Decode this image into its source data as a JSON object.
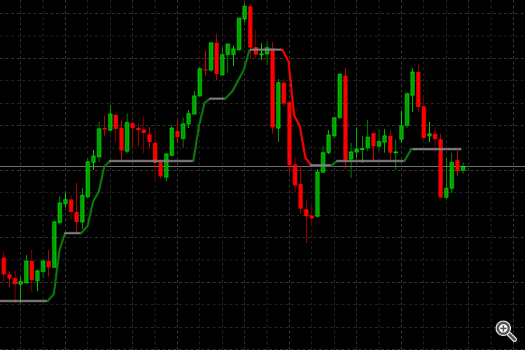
{
  "chart_data": {
    "type": "candlestick",
    "title": "",
    "xlabel": "",
    "ylabel": "",
    "ylim": [
      0,
      500
    ],
    "grid": true,
    "grid_style": "dashed",
    "background": "#000000",
    "colors": {
      "bull_body": "#00a000",
      "bull_border": "#00e000",
      "bear_body": "#ff0000",
      "bear_wick": "#e00000",
      "grid": "#3c3c3c",
      "trail_up": "#0a7a0a",
      "trail_down": "#ff0000",
      "trail_flat": "#808080",
      "level_line": "#b0b0b0"
    },
    "candles_ohlc": [
      [
        132,
        141,
        97,
        108
      ],
      [
        108,
        113,
        90,
        102
      ],
      [
        103,
        113,
        67,
        94
      ],
      [
        94,
        105,
        67,
        98
      ],
      [
        96,
        136,
        95,
        127
      ],
      [
        127,
        143,
        83,
        100
      ],
      [
        99,
        115,
        84,
        113
      ],
      [
        112,
        130,
        103,
        127
      ],
      [
        127,
        143,
        105,
        118
      ],
      [
        118,
        185,
        118,
        183
      ],
      [
        182,
        220,
        179,
        210
      ],
      [
        209,
        225,
        204,
        215
      ],
      [
        215,
        221,
        186,
        197
      ],
      [
        197,
        239,
        167,
        183
      ],
      [
        183,
        232,
        173,
        221
      ],
      [
        219,
        274,
        217,
        269
      ],
      [
        268,
        286,
        257,
        277
      ],
      [
        276,
        326,
        268,
        316
      ],
      [
        317,
        334,
        305,
        315
      ],
      [
        314,
        350,
        313,
        337
      ],
      [
        336,
        338,
        297,
        316
      ],
      [
        317,
        328,
        270,
        285
      ],
      [
        284,
        338,
        281,
        325
      ],
      [
        324,
        326,
        288,
        317
      ],
      [
        317,
        324,
        290,
        314
      ],
      [
        315,
        334,
        281,
        310
      ],
      [
        308,
        319,
        288,
        297
      ],
      [
        296,
        311,
        244,
        267
      ],
      [
        268,
        272,
        245,
        248
      ],
      [
        247,
        281,
        242,
        280
      ],
      [
        278,
        322,
        277,
        317
      ],
      [
        313,
        328,
        296,
        304
      ],
      [
        302,
        332,
        289,
        323
      ],
      [
        323,
        343,
        317,
        338
      ],
      [
        337,
        370,
        337,
        363
      ],
      [
        363,
        405,
        363,
        402
      ],
      [
        401,
        428,
        392,
        400
      ],
      [
        400,
        439,
        397,
        439
      ],
      [
        439,
        452,
        385,
        394
      ],
      [
        393,
        432,
        393,
        422
      ],
      [
        422,
        437,
        396,
        437
      ],
      [
        422,
        435,
        406,
        430
      ],
      [
        429,
        474,
        427,
        474
      ],
      [
        473,
        495,
        468,
        491
      ],
      [
        491,
        495,
        416,
        432
      ],
      [
        433,
        457,
        417,
        422
      ],
      [
        422,
        438,
        414,
        423
      ],
      [
        423,
        441,
        407,
        432
      ],
      [
        431,
        440,
        309,
        318
      ],
      [
        317,
        387,
        297,
        382
      ],
      [
        382,
        387,
        347,
        352
      ],
      [
        354,
        354,
        253,
        264
      ],
      [
        265,
        276,
        225,
        235
      ],
      [
        237,
        263,
        195,
        202
      ],
      [
        201,
        214,
        153,
        191
      ],
      [
        192,
        207,
        177,
        188
      ],
      [
        191,
        258,
        190,
        254
      ],
      [
        254,
        292,
        253,
        282
      ],
      [
        282,
        314,
        280,
        307
      ],
      [
        306,
        333,
        303,
        332
      ],
      [
        332,
        394,
        330,
        394
      ],
      [
        392,
        403,
        259,
        272
      ],
      [
        273,
        296,
        246,
        283
      ],
      [
        283,
        318,
        274,
        287
      ],
      [
        287,
        306,
        267,
        288
      ],
      [
        289,
        329,
        284,
        304
      ],
      [
        310,
        310,
        268,
        291
      ],
      [
        291,
        314,
        284,
        298
      ],
      [
        297,
        316,
        282,
        306
      ],
      [
        306,
        314,
        271,
        282
      ],
      [
        282,
        301,
        257,
        283
      ],
      [
        301,
        342,
        297,
        320
      ],
      [
        321,
        368,
        317,
        366
      ],
      [
        364,
        403,
        340,
        397
      ],
      [
        397,
        408,
        340,
        347
      ],
      [
        348,
        363,
        300,
        303
      ],
      [
        306,
        326,
        297,
        309
      ],
      [
        309,
        318,
        283,
        301
      ],
      [
        301,
        309,
        217,
        218
      ],
      [
        218,
        275,
        215,
        231
      ],
      [
        231,
        282,
        224,
        268
      ],
      [
        271,
        284,
        249,
        256
      ],
      [
        257,
        268,
        252,
        262
      ]
    ],
    "trail_line": [
      [
        -0.7,
        70,
        "flat"
      ],
      [
        7.9,
        70,
        "flat"
      ],
      [
        9,
        80,
        "up"
      ],
      [
        10,
        143,
        "up"
      ],
      [
        11,
        167,
        "up"
      ],
      [
        13.9,
        167,
        "flat"
      ],
      [
        15,
        177,
        "up"
      ],
      [
        16,
        212,
        "up"
      ],
      [
        17,
        226,
        "up"
      ],
      [
        18,
        262,
        "up"
      ],
      [
        19,
        270,
        "up"
      ],
      [
        33.9,
        270,
        "flat"
      ],
      [
        34.9,
        320,
        "up"
      ],
      [
        35.9,
        353,
        "up"
      ],
      [
        36.9,
        359,
        "up"
      ],
      [
        39.6,
        359,
        "flat"
      ],
      [
        40.9,
        370,
        "up"
      ],
      [
        41.9,
        385,
        "up"
      ],
      [
        42.9,
        400,
        "up"
      ],
      [
        43.9,
        428,
        "up"
      ],
      [
        44.2,
        429,
        "up"
      ],
      [
        49.8,
        429,
        "flat"
      ],
      [
        50.9,
        412,
        "down"
      ],
      [
        51.9,
        335,
        "down"
      ],
      [
        52.9,
        320,
        "down"
      ],
      [
        53.9,
        275,
        "down"
      ],
      [
        54.9,
        264,
        "down"
      ],
      [
        58.6,
        264,
        "flat"
      ],
      [
        59.2,
        268,
        "up"
      ],
      [
        59.6,
        270,
        "up"
      ],
      [
        71.6,
        270,
        "flat"
      ],
      [
        72.8,
        287,
        "up"
      ],
      [
        73.2,
        287,
        "up"
      ],
      [
        81.6,
        287,
        "flat"
      ]
    ],
    "horizontal_level": 263
  },
  "controls": {
    "zoom_icon": "magnifier-plus-icon"
  }
}
